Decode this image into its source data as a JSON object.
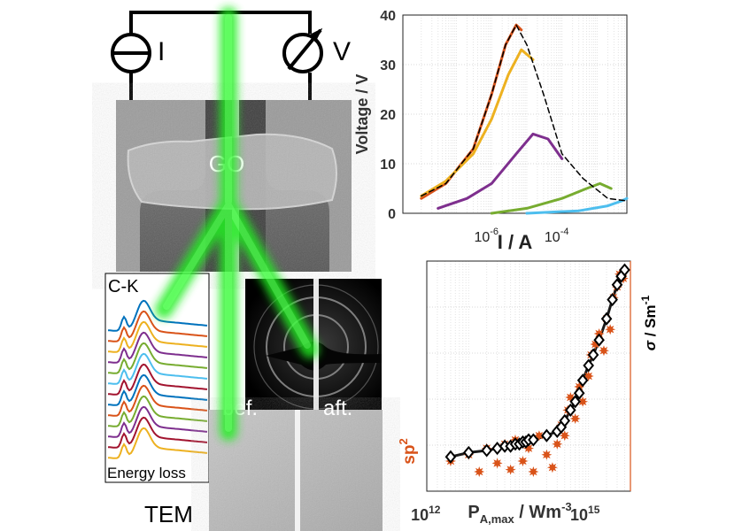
{
  "circuit": {
    "current_label": "I",
    "voltage_label": "V"
  },
  "sample": {
    "label": "GO"
  },
  "eels": {
    "title": "C-K",
    "xlabel": "Energy loss"
  },
  "diffraction": {
    "before_label": "bef.",
    "after_label": "aft."
  },
  "tem": {
    "label": "TEM"
  },
  "colors": {
    "beam": "#22dd22",
    "red": "#d95319",
    "yellow": "#edb120",
    "purple": "#7e2f8e",
    "green": "#77ac30",
    "cyan": "#4dbeee",
    "blue": "#0072bd"
  },
  "chart_data": [
    {
      "type": "line",
      "ylabel": "Voltage / V",
      "xlabel": "I / A",
      "xscale": "log",
      "xticks": [
        "10-6",
        "10-4"
      ],
      "yticks": [
        0,
        10,
        20,
        30,
        40
      ],
      "ylim": [
        0,
        40
      ],
      "grid": true,
      "series": [
        {
          "color": "red",
          "points": [
            [
              1e-08,
              3
            ],
            [
              5e-08,
              6
            ],
            [
              3e-07,
              13
            ],
            [
              1e-06,
              24
            ],
            [
              2.5e-06,
              34
            ],
            [
              5e-06,
              38
            ],
            [
              7e-06,
              37
            ]
          ]
        },
        {
          "color": "yellow",
          "points": [
            [
              1e-08,
              3.5
            ],
            [
              5e-08,
              6.5
            ],
            [
              3e-07,
              12
            ],
            [
              1e-06,
              19
            ],
            [
              3e-06,
              28
            ],
            [
              7e-06,
              33
            ],
            [
              1.5e-05,
              31
            ]
          ]
        },
        {
          "color": "purple",
          "points": [
            [
              3e-08,
              1
            ],
            [
              2e-07,
              3
            ],
            [
              1e-06,
              6
            ],
            [
              5e-06,
              12
            ],
            [
              1.5e-05,
              16
            ],
            [
              4e-05,
              15
            ],
            [
              0.0001,
              11
            ]
          ]
        },
        {
          "color": "green",
          "points": [
            [
              1e-06,
              0
            ],
            [
              1e-05,
              1
            ],
            [
              0.0001,
              3
            ],
            [
              0.0005,
              5
            ],
            [
              0.0012,
              6
            ],
            [
              0.0025,
              5
            ]
          ]
        },
        {
          "color": "cyan",
          "points": [
            [
              1e-05,
              0
            ],
            [
              0.0003,
              0.5
            ],
            [
              0.002,
              1.5
            ],
            [
              0.005,
              2.5
            ],
            [
              0.007,
              3
            ]
          ]
        },
        {
          "color": "black",
          "dashed": true,
          "points": [
            [
              1e-08,
              3.5
            ],
            [
              5e-08,
              6
            ],
            [
              3e-07,
              13
            ],
            [
              1e-06,
              24
            ],
            [
              2.5e-06,
              34
            ],
            [
              5e-06,
              38
            ],
            [
              1e-05,
              34
            ],
            [
              3e-05,
              24
            ],
            [
              0.0001,
              12
            ],
            [
              0.0004,
              7
            ],
            [
              0.002,
              3
            ],
            [
              0.007,
              2.5
            ]
          ]
        }
      ]
    },
    {
      "type": "scatter",
      "ylabel": "σ / Sm-1",
      "ylabel2": "sp2",
      "xlabel": "PA,max / Wm-3",
      "xscale": "log",
      "xticks": [
        "1012",
        "1015"
      ],
      "grid": true,
      "series": [
        {
          "name": "sigma",
          "marker": "diamond",
          "color": "black",
          "points": [
            [
              5000000000000.0,
              0.12
            ],
            [
              10000000000000.0,
              0.14
            ],
            [
              20000000000000.0,
              0.15
            ],
            [
              30000000000000.0,
              0.16
            ],
            [
              40000000000000.0,
              0.17
            ],
            [
              50000000000000.0,
              0.17
            ],
            [
              60000000000000.0,
              0.18
            ],
            [
              70000000000000.0,
              0.18
            ],
            [
              80000000000000.0,
              0.19
            ],
            [
              90000000000000.0,
              0.19
            ],
            [
              100000000000000.0,
              0.2
            ],
            [
              120000000000000.0,
              0.2
            ],
            [
              200000000000000.0,
              0.22
            ],
            [
              300000000000000.0,
              0.24
            ],
            [
              350000000000000.0,
              0.26
            ],
            [
              400000000000000.0,
              0.29
            ],
            [
              500000000000000.0,
              0.34
            ],
            [
              600000000000000.0,
              0.38
            ],
            [
              700000000000000.0,
              0.42
            ],
            [
              800000000000000.0,
              0.48
            ],
            [
              1000000000000000.0,
              0.55
            ],
            [
              1200000000000000.0,
              0.6
            ],
            [
              1500000000000000.0,
              0.67
            ],
            [
              2000000000000000.0,
              0.77
            ],
            [
              2500000000000000.0,
              0.86
            ],
            [
              3000000000000000.0,
              0.93
            ],
            [
              3500000000000000.0,
              0.97
            ],
            [
              4000000000000000.0,
              1.0
            ]
          ]
        },
        {
          "name": "sp2",
          "marker": "star",
          "color": "red",
          "points": [
            [
              5000000000000.0,
              0.1
            ],
            [
              10000000000000.0,
              0.13
            ],
            [
              15000000000000.0,
              0.05
            ],
            [
              20000000000000.0,
              0.16
            ],
            [
              30000000000000.0,
              0.09
            ],
            [
              40000000000000.0,
              0.18
            ],
            [
              50000000000000.0,
              0.06
            ],
            [
              60000000000000.0,
              0.2
            ],
            [
              80000000000000.0,
              0.1
            ],
            [
              100000000000000.0,
              0.16
            ],
            [
              120000000000000.0,
              0.05
            ],
            [
              150000000000000.0,
              0.22
            ],
            [
              200000000000000.0,
              0.13
            ],
            [
              250000000000000.0,
              0.07
            ],
            [
              300000000000000.0,
              0.18
            ],
            [
              350000000000000.0,
              0.27
            ],
            [
              400000000000000.0,
              0.22
            ],
            [
              450000000000000.0,
              0.34
            ],
            [
              500000000000000.0,
              0.4
            ],
            [
              600000000000000.0,
              0.3
            ],
            [
              700000000000000.0,
              0.45
            ],
            [
              800000000000000.0,
              0.38
            ],
            [
              1000000000000000.0,
              0.5
            ],
            [
              1100000000000000.0,
              0.6
            ],
            [
              1300000000000000.0,
              0.65
            ],
            [
              1500000000000000.0,
              0.7
            ],
            [
              1800000000000000.0,
              0.62
            ],
            [
              2000000000000000.0,
              0.77
            ],
            [
              2300000000000000.0,
              0.72
            ],
            [
              2600000000000000.0,
              0.87
            ],
            [
              3000000000000000.0,
              0.92
            ],
            [
              3300000000000000.0,
              0.98
            ],
            [
              3800000000000000.0,
              0.96
            ]
          ]
        }
      ]
    }
  ]
}
